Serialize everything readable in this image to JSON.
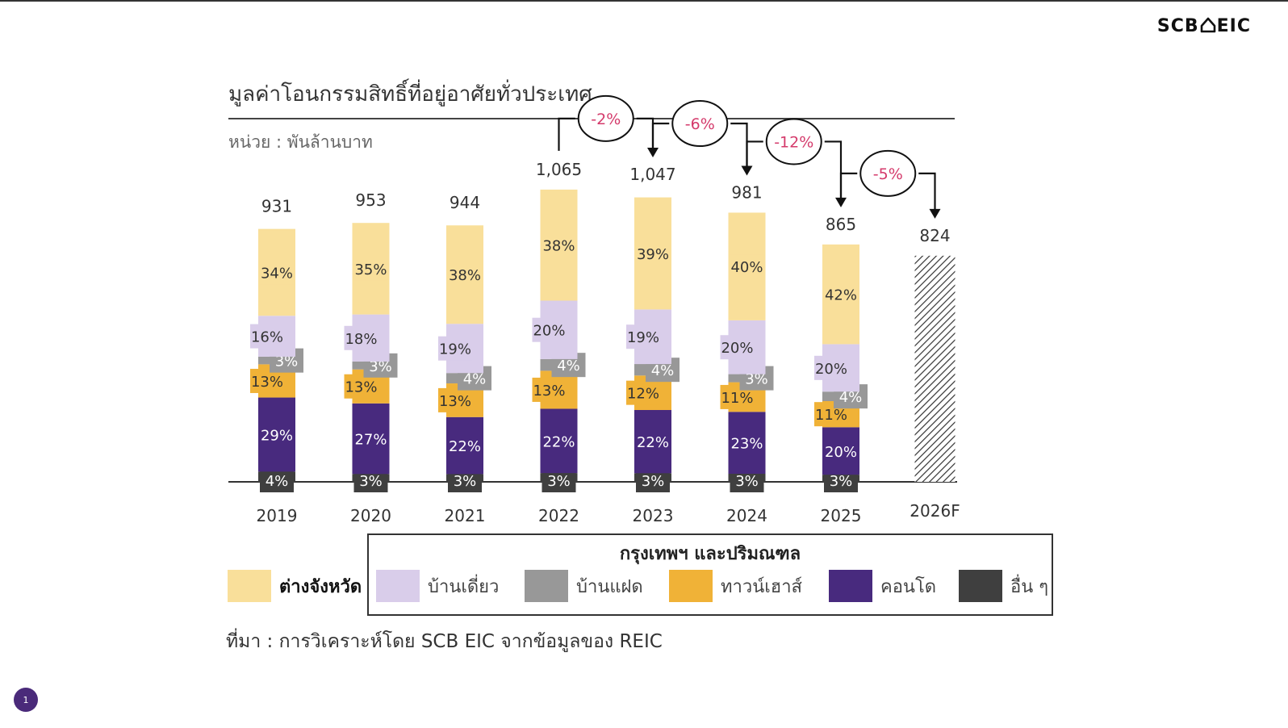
{
  "logo": "SCB EIC",
  "page_number": "1",
  "source": "ที่มา : การวิเคราะห์โดย SCB EIC จากข้อมูลของ REIC",
  "legend": {
    "group_title": "กรุงเทพฯ และปริมณฑล",
    "items": [
      {
        "label": "ต่างจังหวัด",
        "color": "#f9df9a"
      },
      {
        "label": "บ้านเดี่ยว",
        "color": "#d9cdea"
      },
      {
        "label": "บ้านแฝด",
        "color": "#989898"
      },
      {
        "label": "ทาวน์เฮาส์",
        "color": "#f0b237"
      },
      {
        "label": "คอนโด",
        "color": "#482a7e"
      },
      {
        "label": "อื่น ๆ",
        "color": "#3f3f3f"
      }
    ]
  },
  "chart_data": {
    "type": "bar",
    "stacked": true,
    "title": "มูลค่าโอนกรรมสิทธิ์ที่อยู่อาศัยทั่วประเทศ",
    "unit": "หน่วย : พันล้านบาท",
    "categories": [
      "2019",
      "2020",
      "2021",
      "2022",
      "2023",
      "2024",
      "2025",
      "2026F"
    ],
    "totals": [
      931,
      953,
      944,
      1065,
      1047,
      981,
      865,
      824
    ],
    "total_labels": [
      "931",
      "953",
      "944",
      "1,065",
      "1,047",
      "981",
      "865",
      "824"
    ],
    "forecast_index": 7,
    "ylim": [
      0,
      1200
    ],
    "series": [
      {
        "name": "อื่น ๆ",
        "color": "#3f3f3f",
        "shares": [
          4,
          3,
          3,
          3,
          3,
          3,
          3,
          null
        ]
      },
      {
        "name": "คอนโด",
        "color": "#482a7e",
        "shares": [
          29,
          27,
          22,
          22,
          22,
          23,
          20,
          null
        ]
      },
      {
        "name": "ทาวน์เฮาส์",
        "color": "#f0b237",
        "shares": [
          13,
          13,
          13,
          13,
          12,
          11,
          11,
          null
        ]
      },
      {
        "name": "บ้านแฝด",
        "color": "#989898",
        "shares": [
          3,
          3,
          4,
          4,
          4,
          3,
          4,
          null
        ]
      },
      {
        "name": "บ้านเดี่ยว",
        "color": "#d9cdea",
        "shares": [
          16,
          18,
          19,
          20,
          19,
          20,
          20,
          null
        ]
      },
      {
        "name": "ต่างจังหวัด",
        "color": "#f9df9a",
        "shares": [
          34,
          35,
          38,
          38,
          39,
          40,
          42,
          null
        ]
      }
    ],
    "growth_annotations": [
      {
        "from": "2022",
        "to": "2023",
        "label": "-2%"
      },
      {
        "from": "2023",
        "to": "2024",
        "label": "-6%"
      },
      {
        "from": "2024",
        "to": "2025",
        "label": "-12%"
      },
      {
        "from": "2025",
        "to": "2026F",
        "label": "-5%"
      }
    ],
    "annotation_color": "#d43a6b",
    "grid": false
  }
}
